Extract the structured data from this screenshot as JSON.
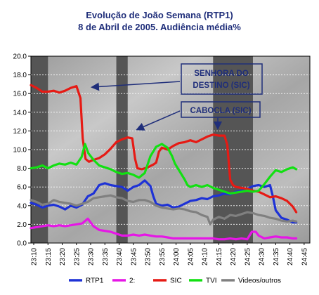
{
  "title_line1": "Evolução de João Semana (RTP1)",
  "title_line2": "8 de Abril de 2005. Audiência média%",
  "chart_data": {
    "type": "line",
    "title": "Evolução de João Semana (RTP1) 8 de Abril de 2005. Audiência média%",
    "ylim": [
      0,
      20
    ],
    "yticks": [
      "0.0",
      "2.0",
      "4.0",
      "6.0",
      "8.0",
      "10.0",
      "12.0",
      "14.0",
      "16.0",
      "18.0",
      "20.0"
    ],
    "x_labels": [
      "23:10",
      "23:15",
      "23:20",
      "23:25",
      "23:30",
      "23:35",
      "23:40",
      "23:45",
      "23:50",
      "23:55",
      "24:00",
      "24:05",
      "24:10",
      "24:15",
      "24:20",
      "24:25",
      "24:30",
      "24:35",
      "24:40",
      "24:45"
    ],
    "grid": true,
    "legend_position": "bottom",
    "shaded_intervals": [
      [
        0,
        3
      ],
      [
        15,
        17
      ],
      [
        32,
        39
      ]
    ],
    "series": [
      {
        "name": "RTP1",
        "color": "#1e32d6",
        "values": [
          [
            0,
            4.3
          ],
          [
            1,
            4.1
          ],
          [
            2,
            3.8
          ],
          [
            3,
            4.0
          ],
          [
            4,
            4.1
          ],
          [
            5,
            3.9
          ],
          [
            6,
            3.6
          ],
          [
            7,
            4.0
          ],
          [
            8,
            3.8
          ],
          [
            9,
            4.1
          ],
          [
            10,
            5.0
          ],
          [
            11,
            5.3
          ],
          [
            12,
            6.2
          ],
          [
            13,
            6.4
          ],
          [
            14,
            6.2
          ],
          [
            15,
            6.1
          ],
          [
            16,
            6.0
          ],
          [
            17,
            5.6
          ],
          [
            18,
            6.0
          ],
          [
            19,
            6.2
          ],
          [
            20,
            6.7
          ],
          [
            21,
            6.1
          ],
          [
            21.5,
            5.0
          ],
          [
            22,
            4.2
          ],
          [
            23,
            4.0
          ],
          [
            24,
            4.1
          ],
          [
            25,
            3.8
          ],
          [
            26,
            3.9
          ],
          [
            27,
            4.2
          ],
          [
            28,
            4.5
          ],
          [
            29,
            4.6
          ],
          [
            30,
            4.8
          ],
          [
            31,
            4.7
          ],
          [
            32,
            5.0
          ],
          [
            33,
            5.1
          ],
          [
            34,
            5.3
          ],
          [
            35,
            5.2
          ],
          [
            36,
            5.5
          ],
          [
            37,
            5.6
          ],
          [
            38,
            5.8
          ],
          [
            39,
            6.1
          ],
          [
            40,
            6.2
          ],
          [
            41,
            6.0
          ],
          [
            42,
            6.2
          ],
          [
            42.5,
            5.0
          ],
          [
            43,
            3.5
          ],
          [
            44,
            2.7
          ],
          [
            45,
            2.5
          ],
          [
            46,
            2.2
          ],
          [
            46.6,
            2.2
          ]
        ]
      },
      {
        "name": "2:",
        "color": "#e616e6",
        "values": [
          [
            0,
            1.6
          ],
          [
            1,
            1.7
          ],
          [
            2,
            1.8
          ],
          [
            3,
            1.9
          ],
          [
            4,
            1.8
          ],
          [
            5,
            1.9
          ],
          [
            6,
            1.8
          ],
          [
            7,
            1.9
          ],
          [
            8,
            2.0
          ],
          [
            9,
            2.1
          ],
          [
            10,
            2.6
          ],
          [
            11,
            1.8
          ],
          [
            12,
            1.4
          ],
          [
            13,
            1.3
          ],
          [
            14,
            1.2
          ],
          [
            15,
            1.0
          ],
          [
            16,
            0.8
          ],
          [
            17,
            0.8
          ],
          [
            18,
            0.9
          ],
          [
            19,
            0.8
          ],
          [
            20,
            0.9
          ],
          [
            21,
            0.8
          ],
          [
            22,
            0.7
          ],
          [
            23,
            0.7
          ],
          [
            24,
            0.6
          ],
          [
            25,
            0.5
          ],
          [
            26,
            0.5
          ],
          [
            27,
            0.5
          ],
          [
            28,
            0.5
          ],
          [
            29,
            0.5
          ],
          [
            30,
            0.5
          ],
          [
            31,
            0.5
          ],
          [
            32,
            0.5
          ],
          [
            33,
            0.4
          ],
          [
            34,
            0.4
          ],
          [
            35,
            0.5
          ],
          [
            36,
            0.4
          ],
          [
            37,
            0.5
          ],
          [
            38,
            0.4
          ],
          [
            38.8,
            1.2
          ],
          [
            39.5,
            1.2
          ],
          [
            40,
            0.8
          ],
          [
            41,
            0.5
          ],
          [
            42,
            0.6
          ],
          [
            43,
            0.7
          ],
          [
            44,
            0.6
          ],
          [
            45,
            0.6
          ],
          [
            46,
            0.5
          ],
          [
            46.6,
            0.5
          ]
        ]
      },
      {
        "name": "SIC",
        "color": "#e61a14",
        "values": [
          [
            0,
            16.9
          ],
          [
            1,
            16.6
          ],
          [
            2,
            16.2
          ],
          [
            3,
            16.2
          ],
          [
            4,
            16.3
          ],
          [
            5,
            16.1
          ],
          [
            6,
            16.3
          ],
          [
            7,
            16.6
          ],
          [
            8,
            16.8
          ],
          [
            8.7,
            15.5
          ],
          [
            9.1,
            11.2
          ],
          [
            9.6,
            9.0
          ],
          [
            10.2,
            8.7
          ],
          [
            11,
            8.9
          ],
          [
            12,
            9.1
          ],
          [
            13,
            9.5
          ],
          [
            14,
            10.1
          ],
          [
            15,
            10.8
          ],
          [
            16,
            11.1
          ],
          [
            17,
            11.3
          ],
          [
            17.8,
            11.2
          ],
          [
            18.3,
            9.0
          ],
          [
            18.7,
            8.0
          ],
          [
            19.5,
            7.9
          ],
          [
            20.5,
            8.1
          ],
          [
            21.5,
            8.4
          ],
          [
            22,
            8.6
          ],
          [
            22.5,
            9.8
          ],
          [
            23,
            10.2
          ],
          [
            24,
            10.0
          ],
          [
            25,
            10.4
          ],
          [
            26,
            10.7
          ],
          [
            27,
            10.8
          ],
          [
            28,
            11.0
          ],
          [
            29,
            10.8
          ],
          [
            30,
            11.1
          ],
          [
            31,
            11.4
          ],
          [
            32,
            11.6
          ],
          [
            33,
            11.5
          ],
          [
            34,
            11.5
          ],
          [
            34.5,
            10.5
          ],
          [
            35,
            6.8
          ],
          [
            35.5,
            6.2
          ],
          [
            36,
            6.0
          ],
          [
            37,
            5.9
          ],
          [
            38,
            5.8
          ],
          [
            39,
            5.6
          ],
          [
            40,
            5.5
          ],
          [
            41,
            5.2
          ],
          [
            42,
            4.9
          ],
          [
            43,
            5.0
          ],
          [
            44,
            4.8
          ],
          [
            45,
            4.5
          ],
          [
            46,
            3.9
          ],
          [
            46.6,
            3.3
          ]
        ]
      },
      {
        "name": "TVI",
        "color": "#12e012",
        "values": [
          [
            0,
            8.0
          ],
          [
            1,
            8.1
          ],
          [
            2,
            8.3
          ],
          [
            3,
            8.0
          ],
          [
            4,
            8.3
          ],
          [
            5,
            8.5
          ],
          [
            6,
            8.4
          ],
          [
            7,
            8.6
          ],
          [
            8,
            8.4
          ],
          [
            8.9,
            9.2
          ],
          [
            9.5,
            10.6
          ],
          [
            10.1,
            9.6
          ],
          [
            11,
            8.9
          ],
          [
            12,
            8.3
          ],
          [
            13,
            8.1
          ],
          [
            14,
            7.9
          ],
          [
            15,
            7.6
          ],
          [
            16,
            7.4
          ],
          [
            17,
            7.5
          ],
          [
            18,
            7.3
          ],
          [
            19,
            7.0
          ],
          [
            20,
            7.5
          ],
          [
            21,
            9.3
          ],
          [
            22,
            10.3
          ],
          [
            23,
            10.6
          ],
          [
            24,
            10.2
          ],
          [
            24.8,
            9.3
          ],
          [
            25.3,
            8.5
          ],
          [
            26,
            7.8
          ],
          [
            27,
            6.8
          ],
          [
            27.5,
            6.2
          ],
          [
            28,
            6.0
          ],
          [
            29,
            6.2
          ],
          [
            30,
            6.0
          ],
          [
            31,
            6.2
          ],
          [
            32,
            5.9
          ],
          [
            33,
            5.7
          ],
          [
            34,
            5.5
          ],
          [
            35,
            5.3
          ],
          [
            36,
            5.4
          ],
          [
            37,
            5.5
          ],
          [
            38,
            5.6
          ],
          [
            39,
            5.5
          ],
          [
            40,
            5.6
          ],
          [
            41,
            6.3
          ],
          [
            42,
            7.1
          ],
          [
            43,
            7.8
          ],
          [
            44,
            7.6
          ],
          [
            45,
            7.9
          ],
          [
            46,
            8.1
          ],
          [
            46.6,
            7.9
          ]
        ]
      },
      {
        "name": "Videos/outros",
        "color": "#808080",
        "values": [
          [
            0,
            4.6
          ],
          [
            1,
            4.4
          ],
          [
            2,
            4.1
          ],
          [
            3,
            4.2
          ],
          [
            4,
            4.6
          ],
          [
            5,
            4.4
          ],
          [
            6,
            4.3
          ],
          [
            7,
            4.2
          ],
          [
            8,
            4.0
          ],
          [
            9,
            4.2
          ],
          [
            10,
            4.4
          ],
          [
            11,
            4.8
          ],
          [
            12,
            4.9
          ],
          [
            13,
            5.0
          ],
          [
            14,
            5.1
          ],
          [
            15,
            4.9
          ],
          [
            16,
            4.8
          ],
          [
            17,
            4.5
          ],
          [
            18,
            4.4
          ],
          [
            19,
            4.6
          ],
          [
            20,
            4.6
          ],
          [
            21,
            4.4
          ],
          [
            22,
            4.0
          ],
          [
            23,
            3.8
          ],
          [
            24,
            3.7
          ],
          [
            25,
            3.6
          ],
          [
            26,
            3.7
          ],
          [
            27,
            3.6
          ],
          [
            28,
            3.4
          ],
          [
            29,
            3.3
          ],
          [
            30,
            3.0
          ],
          [
            31,
            2.8
          ],
          [
            31.5,
            2.0
          ],
          [
            32,
            2.5
          ],
          [
            33,
            2.8
          ],
          [
            34,
            2.6
          ],
          [
            35,
            3.0
          ],
          [
            36,
            2.9
          ],
          [
            37,
            3.1
          ],
          [
            38,
            3.3
          ],
          [
            39,
            3.2
          ],
          [
            40,
            3.0
          ],
          [
            41,
            2.9
          ],
          [
            42,
            2.7
          ],
          [
            43,
            2.6
          ],
          [
            44,
            2.4
          ],
          [
            45,
            2.3
          ],
          [
            46,
            2.4
          ],
          [
            46.6,
            2.3
          ]
        ]
      }
    ],
    "annotations": [
      {
        "lines": [
          "SENHORA DO",
          "DESTINO (SIC)"
        ]
      },
      {
        "lines": [
          "CABOCLA (SIC)"
        ]
      }
    ]
  }
}
